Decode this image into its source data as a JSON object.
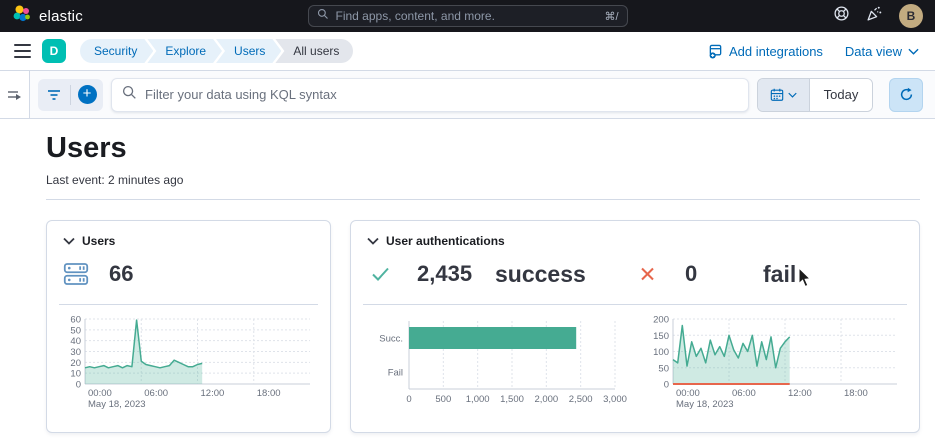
{
  "header": {
    "brand": "elastic",
    "search": {
      "placeholder": "Find apps, content, and more.",
      "shortcut": "⌘/"
    },
    "avatar_initial": "B"
  },
  "breadcrumb_bar": {
    "space_initial": "D",
    "items": [
      {
        "label": "Security"
      },
      {
        "label": "Explore"
      },
      {
        "label": "Users"
      },
      {
        "label": "All users"
      }
    ],
    "add_integrations_label": "Add integrations",
    "data_view_label": "Data view"
  },
  "filter_bar": {
    "kql_placeholder": "Filter your data using KQL syntax",
    "today_label": "Today"
  },
  "page": {
    "title": "Users",
    "last_event": "Last event: 2 minutes ago"
  },
  "cards": {
    "users": {
      "title": "Users",
      "value": "66"
    },
    "auth": {
      "title": "User authentications",
      "success_value": "2,435",
      "success_label": "success",
      "fail_value": "0",
      "fail_label": "fail"
    }
  },
  "colors": {
    "primary_blue": "#006bb8",
    "success_green": "#45ab92",
    "danger_red": "#e7664c",
    "space_avatar": "#00bfb3",
    "user_avatar": "#c2ab80"
  },
  "chart_data": [
    {
      "id": "users-sparkline",
      "type": "area",
      "title": "Users over time",
      "x_domain": [
        0,
        24
      ],
      "x_ticks": [
        {
          "pos": 0,
          "label": "00:00",
          "sub": "May 18, 2023"
        },
        {
          "pos": 6,
          "label": "06:00"
        },
        {
          "pos": 12,
          "label": "12:00"
        },
        {
          "pos": 18,
          "label": "18:00"
        }
      ],
      "y_domain": [
        0,
        60
      ],
      "y_ticks": [
        0,
        10,
        20,
        30,
        40,
        50,
        60
      ],
      "grid": true,
      "series": [
        {
          "name": "users",
          "color": "#45ab92",
          "fill": "rgba(84,179,153,0.28)",
          "x_start": 0,
          "x_step": 0.5,
          "values": [
            15,
            16,
            15,
            16,
            17,
            15,
            16,
            17,
            15,
            17,
            16,
            59,
            21,
            18,
            17,
            16,
            15,
            16,
            17,
            22,
            20,
            18,
            16,
            16,
            18,
            19
          ]
        }
      ]
    },
    {
      "id": "auth-bars",
      "type": "bar-horizontal",
      "title": "Authentication result counts",
      "categories": [
        "Succ.",
        "Fail"
      ],
      "values": [
        2435,
        0
      ],
      "bar_color": "#45ab92",
      "x_domain": [
        0,
        3000
      ],
      "x_ticks": [
        0,
        500,
        1000,
        1500,
        2000,
        2500,
        3000
      ],
      "grid": true
    },
    {
      "id": "auth-sparkline",
      "type": "area",
      "title": "Authentications over time",
      "x_domain": [
        0,
        24
      ],
      "x_ticks": [
        {
          "pos": 0,
          "label": "00:00",
          "sub": "May 18, 2023"
        },
        {
          "pos": 6,
          "label": "06:00"
        },
        {
          "pos": 12,
          "label": "12:00"
        },
        {
          "pos": 18,
          "label": "18:00"
        }
      ],
      "y_domain": [
        0,
        200
      ],
      "y_ticks": [
        0,
        50,
        100,
        150,
        200
      ],
      "grid": true,
      "series": [
        {
          "name": "success",
          "color": "#45ab92",
          "fill": "rgba(84,179,153,0.28)",
          "x_start": 0,
          "x_step": 0.5,
          "values": [
            75,
            65,
            180,
            55,
            130,
            85,
            110,
            65,
            135,
            90,
            115,
            85,
            150,
            105,
            80,
            125,
            100,
            150,
            55,
            130,
            75,
            145,
            50,
            110,
            130,
            145
          ]
        },
        {
          "name": "fail",
          "color": "#e7664c",
          "fill": "none",
          "width": 2,
          "x_start": 0,
          "x_step": 0.5,
          "values": [
            0,
            0,
            0,
            0,
            0,
            0,
            0,
            0,
            0,
            0,
            0,
            0,
            0,
            0,
            0,
            0,
            0,
            0,
            0,
            0,
            0,
            0,
            0,
            0,
            0,
            0
          ]
        }
      ]
    }
  ]
}
